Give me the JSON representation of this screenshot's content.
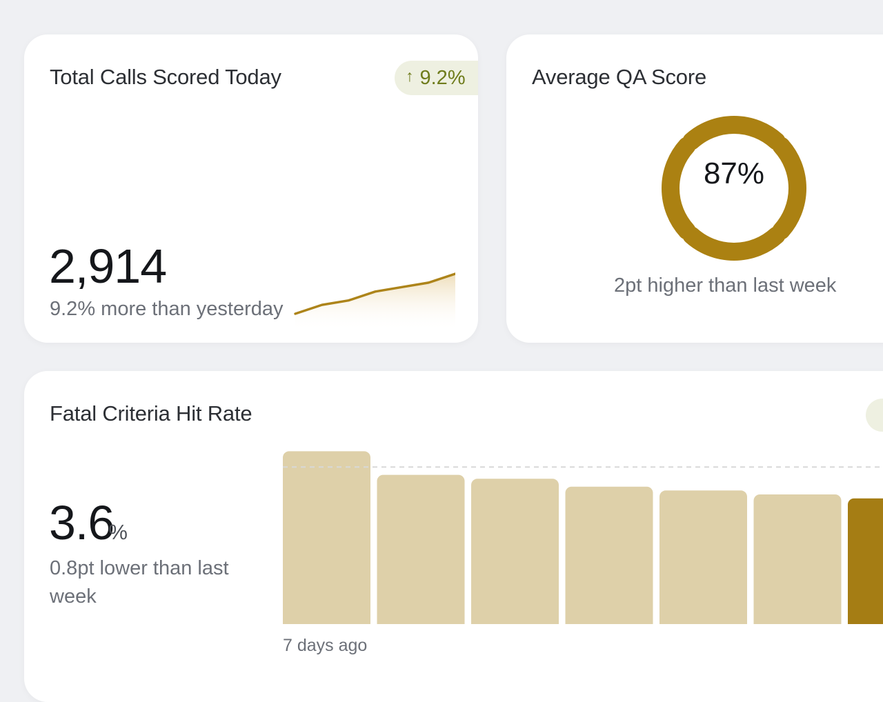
{
  "calls_card": {
    "title": "Total Calls Scored Today",
    "badge": {
      "arrow": "↑",
      "value": "9.2%"
    },
    "value": "2,914",
    "subtitle": "9.2% more than yesterday",
    "sparkline": {
      "type": "line",
      "values": [
        0,
        2,
        3,
        5,
        6,
        7,
        9
      ],
      "color": "#ad841a"
    }
  },
  "qa_card": {
    "title": "Average QA Score",
    "value": "87%",
    "subtitle": "2pt higher than last week",
    "gauge": {
      "percent": 87,
      "color": "#ab8112"
    }
  },
  "fatal_card": {
    "title": "Fatal Criteria Hit Rate",
    "value": "3.6",
    "unit": "%",
    "subtitle": "0.8pt lower than last week",
    "xlabel": "7 days ago"
  },
  "chart_data": {
    "type": "bar",
    "categories": [
      "",
      "",
      "",
      "",
      "",
      "",
      ""
    ],
    "values": [
      4.4,
      3.8,
      3.7,
      3.5,
      3.4,
      3.3,
      3.2
    ],
    "reference_line": 4.0,
    "ylim": [
      0,
      4.6
    ],
    "xlabel": "",
    "ylabel": "",
    "colors": {
      "past": "#ded0a9",
      "current": "#a57d14",
      "reference": "#d8d8d8"
    }
  }
}
